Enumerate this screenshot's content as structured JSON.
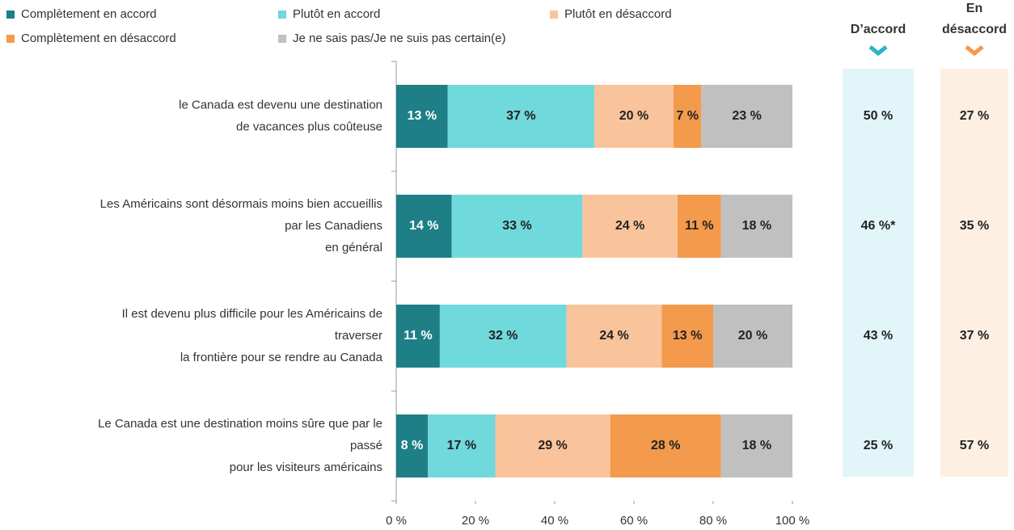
{
  "chart_data": {
    "type": "bar",
    "orientation": "horizontal",
    "stacked": true,
    "categories": [
      [
        "le Canada est devenu une destination",
        "de vacances plus coûteuse"
      ],
      [
        "Les Américains sont désormais moins bien accueillis",
        "par les Canadiens",
        "en général"
      ],
      [
        "Il est devenu plus difficile pour les Américains de",
        "traverser",
        "la frontière pour se rendre au Canada"
      ],
      [
        "Le Canada est une destination moins sûre que par le",
        "passé",
        "pour les visiteurs américains"
      ]
    ],
    "series": [
      {
        "name": "Complètement en accord",
        "color": "#1e7f86",
        "values": [
          13,
          14,
          11,
          8
        ],
        "value_labels": [
          "13 %",
          "14 %",
          "11 %",
          "8 %"
        ]
      },
      {
        "name": "Plutôt en accord",
        "color": "#70d9dc",
        "values": [
          37,
          33,
          32,
          17
        ],
        "value_labels": [
          "37 %",
          "33 %",
          "32 %",
          "17 %"
        ]
      },
      {
        "name": "Plutôt en désaccord",
        "color": "#f9c49b",
        "values": [
          20,
          24,
          24,
          29
        ],
        "value_labels": [
          "20 %",
          "24 %",
          "24 %",
          "29 %"
        ]
      },
      {
        "name": "Complètement en désaccord",
        "color": "#f39a4c",
        "values": [
          7,
          11,
          13,
          28
        ],
        "value_labels": [
          "7 %",
          "11 %",
          "13 %",
          "28 %"
        ]
      },
      {
        "name": "Je ne sais pas/Je ne suis pas certain(e)",
        "color": "#c0c0c0",
        "values": [
          23,
          18,
          20,
          18
        ],
        "value_labels": [
          "23 %",
          "18 %",
          "20 %",
          "18 %"
        ]
      }
    ],
    "xlim": [
      0,
      100
    ],
    "xticks": [
      {
        "value": 0,
        "label": "0 %"
      },
      {
        "value": 20,
        "label": "20 %"
      },
      {
        "value": 40,
        "label": "40 %"
      },
      {
        "value": 60,
        "label": "60 %"
      },
      {
        "value": 80,
        "label": "80 %"
      },
      {
        "value": 100,
        "label": "100 %"
      }
    ],
    "summaries": [
      {
        "name": [
          "D’accord"
        ],
        "color": "#e2f5f9",
        "accent": "#2bb5c2",
        "values": [
          50,
          46,
          43,
          25
        ],
        "value_labels": [
          "50 %",
          "46 %*",
          "43 %",
          "25 %"
        ]
      },
      {
        "name": [
          "En",
          "désaccord"
        ],
        "color": "#fdefe2",
        "accent": "#f39a4c",
        "values": [
          27,
          35,
          37,
          57
        ],
        "value_labels": [
          "27 %",
          "35 %",
          "37 %",
          "57 %"
        ]
      }
    ]
  }
}
